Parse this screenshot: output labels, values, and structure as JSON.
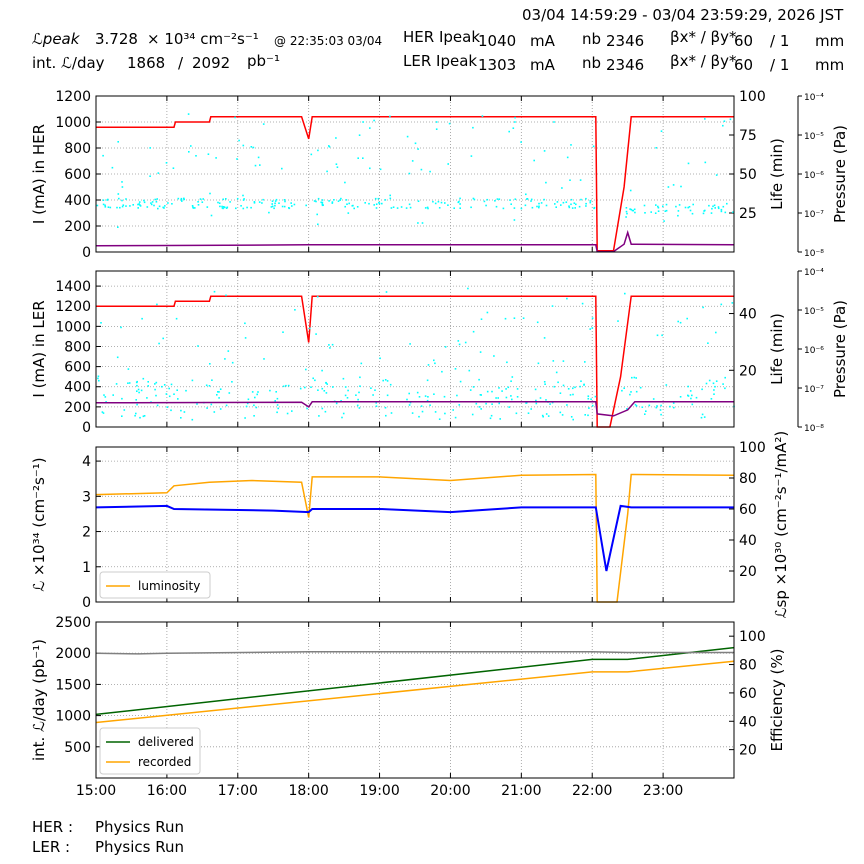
{
  "header": {
    "time_range": "03/04 14:59:29 - 03/04 23:59:29, 2026 JST",
    "lpeak_label": "ℒpeak",
    "lpeak_value": "3.728",
    "lpeak_unit": "× 10³⁴ cm⁻²s⁻¹",
    "lpeak_at": "@ 22:35:03 03/04",
    "int_label": "int. ℒ/day",
    "int_value": "1868",
    "int_slash": "/",
    "int_total": "2092",
    "int_unit": "pb⁻¹",
    "her_ipeak_label": "HER Ipeak",
    "her_ipeak_value": "1040",
    "her_ipeak_unit": "mA",
    "her_nb_label": "nb",
    "her_nb_value": "2346",
    "her_beta_label": "βx* / βy*",
    "her_beta_x": "60",
    "her_beta_y": "/ 1",
    "her_beta_unit": "mm",
    "ler_ipeak_label": "LER Ipeak",
    "ler_ipeak_value": "1303",
    "ler_ipeak_unit": "mA",
    "ler_nb_label": "nb",
    "ler_nb_value": "2346",
    "ler_beta_label": "βx* / βy*",
    "ler_beta_x": "60",
    "ler_beta_y": "/ 1",
    "ler_beta_unit": "mm"
  },
  "footer": {
    "her_label": "HER :",
    "her_status": "Physics Run",
    "ler_label": "LER :",
    "ler_status": "Physics Run"
  },
  "colors": {
    "current": "#ff0000",
    "life": "#00ffff",
    "pressure": "#800080",
    "luminosity": "#ffa500",
    "specific": "#0000ff",
    "delivered": "#006400",
    "recorded": "#ffa500",
    "efficiency": "#808080"
  },
  "chart_data": [
    {
      "type": "line",
      "panel": "HER",
      "ylabel": "I (mA) in HER",
      "ylim": [
        0,
        1200
      ],
      "yticks": [
        0,
        200,
        400,
        600,
        800,
        1000,
        1200
      ],
      "y2label": "Life (min)",
      "y2lim": [
        0,
        100
      ],
      "y2ticks": [
        25,
        50,
        75,
        100
      ],
      "y3label": "Pressure (Pa)",
      "y3ticks": [
        "10⁻⁸",
        "10⁻⁷",
        "10⁻⁶",
        "10⁻⁵",
        "10⁻⁴"
      ],
      "series": [
        {
          "key": "current",
          "points": [
            [
              15.0,
              960
            ],
            [
              16.1,
              960
            ],
            [
              16.12,
              1000
            ],
            [
              16.6,
              1000
            ],
            [
              16.62,
              1040
            ],
            [
              17.9,
              1040
            ],
            [
              18.0,
              870
            ],
            [
              18.05,
              1040
            ],
            [
              22.05,
              1040
            ],
            [
              22.07,
              10
            ],
            [
              22.3,
              10
            ],
            [
              22.45,
              500
            ],
            [
              22.55,
              1040
            ],
            [
              24.0,
              1040
            ]
          ]
        },
        {
          "key": "life",
          "base": 380,
          "spread": 40,
          "gap": [
            22.05,
            22.45
          ],
          "post_base": 340
        },
        {
          "key": "pressure",
          "points": [
            [
              15.0,
              48
            ],
            [
              16.0,
              50
            ],
            [
              18.0,
              55
            ],
            [
              22.05,
              55
            ],
            [
              22.07,
              3
            ],
            [
              22.3,
              3
            ],
            [
              22.45,
              60
            ],
            [
              22.5,
              150
            ],
            [
              22.55,
              60
            ],
            [
              24.0,
              55
            ]
          ]
        }
      ]
    },
    {
      "type": "line",
      "panel": "LER",
      "ylabel": "I (mA) in LER",
      "ylim": [
        0,
        1550
      ],
      "yticks": [
        0,
        200,
        400,
        600,
        800,
        1000,
        1200,
        1400
      ],
      "y2label": "Life (min)",
      "y2lim": [
        0,
        55
      ],
      "y2ticks": [
        20,
        40
      ],
      "y3label": "Pressure (Pa)",
      "y3ticks": [
        "10⁻⁸",
        "10⁻⁷",
        "10⁻⁶",
        "10⁻⁵",
        "10⁻⁴"
      ],
      "series": [
        {
          "key": "current",
          "points": [
            [
              15.0,
              1200
            ],
            [
              16.1,
              1200
            ],
            [
              16.12,
              1250
            ],
            [
              16.6,
              1250
            ],
            [
              16.62,
              1300
            ],
            [
              17.9,
              1300
            ],
            [
              18.0,
              840
            ],
            [
              18.05,
              1300
            ],
            [
              22.05,
              1300
            ],
            [
              22.07,
              0
            ],
            [
              22.25,
              0
            ],
            [
              22.4,
              500
            ],
            [
              22.55,
              1300
            ],
            [
              24.0,
              1300
            ]
          ]
        },
        {
          "key": "life",
          "base": 280,
          "spread": 200,
          "gap": [
            22.05,
            22.35
          ],
          "post_base": 300
        },
        {
          "key": "pressure",
          "points": [
            [
              15.0,
              240
            ],
            [
              17.9,
              245
            ],
            [
              18.0,
              200
            ],
            [
              18.05,
              250
            ],
            [
              22.05,
              250
            ],
            [
              22.07,
              130
            ],
            [
              22.3,
              110
            ],
            [
              22.5,
              170
            ],
            [
              22.6,
              250
            ],
            [
              24.0,
              250
            ]
          ]
        }
      ]
    },
    {
      "type": "line",
      "panel": "Luminosity",
      "ylabel": "ℒ ×10³⁴ (cm⁻²s⁻¹)",
      "ylim": [
        0,
        4.4
      ],
      "yticks": [
        0,
        1,
        2,
        3,
        4
      ],
      "y2label": "ℒsp ×10³⁰ (cm⁻²s⁻¹/mA²)",
      "y2lim": [
        0,
        100
      ],
      "y2ticks": [
        20,
        40,
        60,
        80,
        100
      ],
      "legend": [
        "luminosity"
      ],
      "series": [
        {
          "key": "luminosity",
          "points": [
            [
              15.0,
              3.05
            ],
            [
              16.0,
              3.1
            ],
            [
              16.1,
              3.3
            ],
            [
              16.6,
              3.4
            ],
            [
              17.2,
              3.45
            ],
            [
              17.9,
              3.4
            ],
            [
              18.0,
              2.4
            ],
            [
              18.05,
              3.55
            ],
            [
              19.0,
              3.55
            ],
            [
              20.0,
              3.45
            ],
            [
              21.0,
              3.6
            ],
            [
              22.05,
              3.62
            ],
            [
              22.07,
              0
            ],
            [
              22.35,
              0
            ],
            [
              22.5,
              2.5
            ],
            [
              22.55,
              3.62
            ],
            [
              24.0,
              3.6
            ]
          ]
        },
        {
          "key": "specific",
          "points": [
            [
              15.0,
              61
            ],
            [
              16.0,
              62
            ],
            [
              16.1,
              60
            ],
            [
              17.5,
              59
            ],
            [
              18.0,
              58
            ],
            [
              18.05,
              60
            ],
            [
              19.0,
              60
            ],
            [
              20.0,
              58
            ],
            [
              21.0,
              61
            ],
            [
              22.05,
              61
            ],
            [
              22.2,
              20
            ],
            [
              22.4,
              62
            ],
            [
              22.55,
              61
            ],
            [
              24.0,
              61
            ]
          ]
        }
      ]
    },
    {
      "type": "line",
      "panel": "Integrated",
      "ylabel": "int. ℒ/day (pb⁻¹)",
      "ylim": [
        0,
        2500
      ],
      "yticks": [
        500,
        1000,
        1500,
        2000,
        2500
      ],
      "y2label": "Efficiency (%)",
      "y2lim": [
        0,
        110
      ],
      "y2ticks": [
        20,
        40,
        60,
        80,
        100
      ],
      "legend": [
        "delivered",
        "recorded"
      ],
      "xticks": [
        "15:00",
        "16:00",
        "17:00",
        "18:00",
        "19:00",
        "20:00",
        "21:00",
        "22:00",
        "23:00"
      ],
      "series": [
        {
          "key": "delivered",
          "points": [
            [
              15.0,
              1020
            ],
            [
              22.0,
              1900
            ],
            [
              22.5,
              1900
            ],
            [
              24.0,
              2090
            ]
          ]
        },
        {
          "key": "recorded",
          "points": [
            [
              15.0,
              890
            ],
            [
              22.0,
              1700
            ],
            [
              22.5,
              1700
            ],
            [
              24.0,
              1870
            ]
          ]
        },
        {
          "key": "efficiency",
          "points": [
            [
              15.0,
              88
            ],
            [
              15.6,
              87.5
            ],
            [
              16.0,
              88
            ],
            [
              18.0,
              89
            ],
            [
              22.0,
              89
            ],
            [
              22.5,
              88.5
            ],
            [
              24.0,
              88.5
            ]
          ]
        }
      ]
    }
  ]
}
